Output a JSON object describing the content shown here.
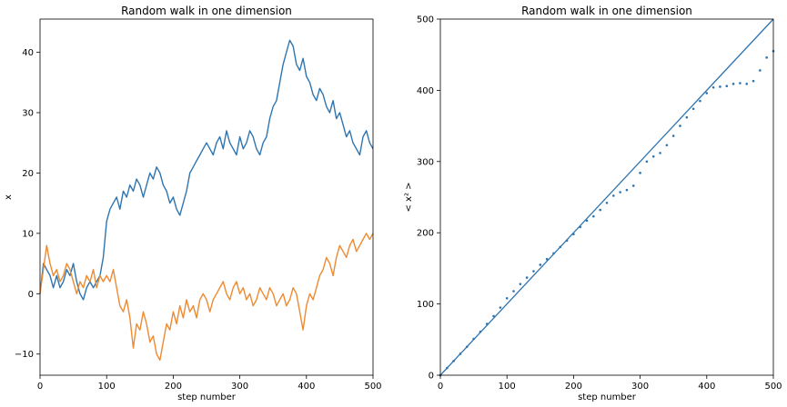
{
  "colors": {
    "blue": "#2e75b0",
    "orange": "#ee8a30"
  },
  "chart_data": [
    {
      "type": "line",
      "title": "Random walk in one dimension",
      "xlabel": "step number",
      "ylabel": "x",
      "xlim": [
        0,
        500
      ],
      "ylim": [
        -13.5,
        45.5
      ],
      "xticks": [
        0,
        100,
        200,
        300,
        400,
        500
      ],
      "yticks": [
        -10,
        0,
        10,
        20,
        30,
        40
      ],
      "grid": false,
      "series": [
        {
          "color": "#2e75b0",
          "x": [
            0,
            5,
            10,
            15,
            20,
            25,
            30,
            35,
            40,
            45,
            50,
            55,
            60,
            65,
            70,
            75,
            80,
            85,
            90,
            95,
            100,
            105,
            110,
            115,
            120,
            125,
            130,
            135,
            140,
            145,
            150,
            155,
            160,
            165,
            170,
            175,
            180,
            185,
            190,
            195,
            200,
            205,
            210,
            215,
            220,
            225,
            230,
            235,
            240,
            245,
            250,
            255,
            260,
            265,
            270,
            275,
            280,
            285,
            290,
            295,
            300,
            305,
            310,
            315,
            320,
            325,
            330,
            335,
            340,
            345,
            350,
            355,
            360,
            365,
            370,
            375,
            380,
            385,
            390,
            395,
            400,
            405,
            410,
            415,
            420,
            425,
            430,
            435,
            440,
            445,
            450,
            455,
            460,
            465,
            470,
            475,
            480,
            485,
            490,
            495,
            500
          ],
          "y": [
            0,
            5,
            4,
            3,
            1,
            3,
            1,
            2,
            4,
            3,
            5,
            2,
            0,
            -1,
            1,
            2,
            1,
            2,
            3,
            6,
            12,
            14,
            15,
            16,
            14,
            17,
            16,
            18,
            17,
            19,
            18,
            16,
            18,
            20,
            19,
            21,
            20,
            18,
            17,
            15,
            16,
            14,
            13,
            15,
            17,
            20,
            21,
            22,
            23,
            24,
            25,
            24,
            23,
            25,
            26,
            24,
            27,
            25,
            24,
            23,
            26,
            24,
            25,
            27,
            26,
            24,
            23,
            25,
            26,
            29,
            31,
            32,
            35,
            38,
            40,
            42,
            41,
            38,
            37,
            39,
            36,
            35,
            33,
            32,
            34,
            33,
            31,
            30,
            32,
            29,
            30,
            28,
            26,
            27,
            25,
            24,
            23,
            26,
            27,
            25,
            24
          ]
        },
        {
          "color": "#ee8a30",
          "x": [
            0,
            5,
            10,
            15,
            20,
            25,
            30,
            35,
            40,
            45,
            50,
            55,
            60,
            65,
            70,
            75,
            80,
            85,
            90,
            95,
            100,
            105,
            110,
            115,
            120,
            125,
            130,
            135,
            140,
            145,
            150,
            155,
            160,
            165,
            170,
            175,
            180,
            185,
            190,
            195,
            200,
            205,
            210,
            215,
            220,
            225,
            230,
            235,
            240,
            245,
            250,
            255,
            260,
            265,
            270,
            275,
            280,
            285,
            290,
            295,
            300,
            305,
            310,
            315,
            320,
            325,
            330,
            335,
            340,
            345,
            350,
            355,
            360,
            365,
            370,
            375,
            380,
            385,
            390,
            395,
            400,
            405,
            410,
            415,
            420,
            425,
            430,
            435,
            440,
            445,
            450,
            455,
            460,
            465,
            470,
            475,
            480,
            485,
            490,
            495,
            500
          ],
          "y": [
            0,
            4,
            8,
            5,
            3,
            4,
            2,
            3,
            5,
            4,
            2,
            0,
            2,
            1,
            3,
            2,
            4,
            1,
            3,
            2,
            3,
            2,
            4,
            1,
            -2,
            -3,
            -1,
            -4,
            -9,
            -5,
            -6,
            -3,
            -5,
            -8,
            -7,
            -10,
            -11,
            -8,
            -5,
            -6,
            -3,
            -5,
            -2,
            -4,
            -1,
            -3,
            -2,
            -4,
            -1,
            0,
            -1,
            -3,
            -1,
            0,
            1,
            2,
            0,
            -1,
            1,
            2,
            0,
            1,
            -1,
            0,
            -2,
            -1,
            1,
            0,
            -1,
            1,
            0,
            -2,
            -1,
            0,
            -2,
            -1,
            1,
            0,
            -3,
            -6,
            -2,
            0,
            -1,
            1,
            3,
            4,
            6,
            5,
            3,
            6,
            8,
            7,
            6,
            8,
            9,
            7,
            8,
            9,
            10,
            9,
            10
          ]
        }
      ]
    },
    {
      "type": "scatter",
      "title": "Random walk in one dimension",
      "xlabel": "step number",
      "ylabel": "< x² >",
      "xlim": [
        0,
        500
      ],
      "ylim": [
        0,
        500
      ],
      "xticks": [
        0,
        100,
        200,
        300,
        400,
        500
      ],
      "yticks": [
        0,
        100,
        200,
        300,
        400,
        500
      ],
      "grid": false,
      "reference_line": {
        "color": "#2e75b0",
        "x": [
          0,
          500
        ],
        "y": [
          0,
          500
        ]
      },
      "series": [
        {
          "color": "#2e75b0",
          "x": [
            0,
            10,
            20,
            30,
            40,
            50,
            60,
            70,
            80,
            90,
            100,
            110,
            120,
            130,
            140,
            150,
            160,
            170,
            180,
            190,
            200,
            210,
            220,
            230,
            240,
            250,
            260,
            270,
            280,
            290,
            300,
            310,
            320,
            330,
            340,
            350,
            360,
            370,
            380,
            390,
            400,
            410,
            420,
            430,
            440,
            450,
            460,
            470,
            480,
            490,
            500
          ],
          "y": [
            0,
            10,
            20,
            30,
            40,
            51,
            61,
            72,
            83,
            95,
            108,
            118,
            128,
            137,
            146,
            155,
            163,
            171,
            180,
            189,
            198,
            208,
            217,
            223,
            232,
            242,
            252,
            257,
            260,
            266,
            284,
            300,
            307,
            312,
            323,
            336,
            350,
            362,
            374,
            385,
            396,
            404,
            405,
            406,
            409,
            410,
            409,
            413,
            428,
            446,
            455
          ]
        }
      ]
    }
  ]
}
